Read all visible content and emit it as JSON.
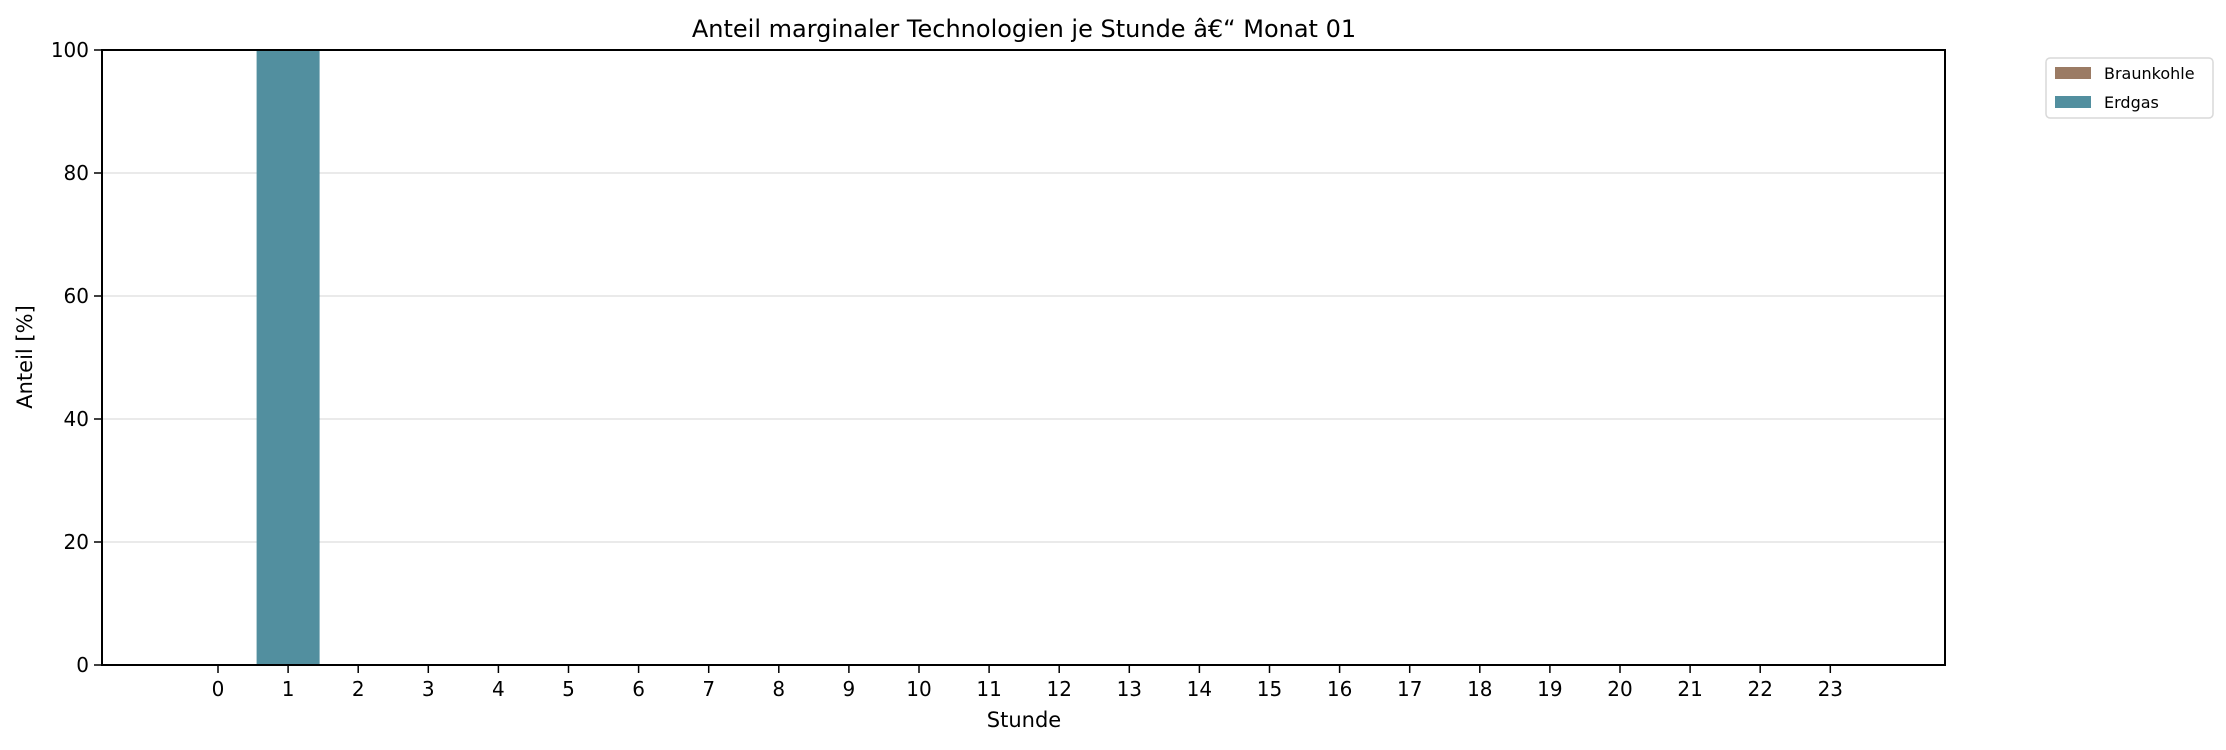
{
  "chart_data": {
    "type": "bar",
    "stacked": true,
    "title": "Anteil marginaler Technologien je Stunde â€“ Monat 01",
    "xlabel": "Stunde",
    "ylabel": "Anteil [%]",
    "categories": [
      "0",
      "1",
      "2",
      "3",
      "4",
      "5",
      "6",
      "7",
      "8",
      "9",
      "10",
      "11",
      "12",
      "13",
      "14",
      "15",
      "16",
      "17",
      "18",
      "19",
      "20",
      "21",
      "22",
      "23"
    ],
    "series": [
      {
        "name": "Braunkohle",
        "color": "#9b7b64",
        "values": [
          0,
          0,
          0,
          0,
          0,
          0,
          0,
          0,
          0,
          0,
          0,
          0,
          0,
          0,
          0,
          0,
          0,
          0,
          0,
          0,
          0,
          0,
          0,
          0
        ]
      },
      {
        "name": "Erdgas",
        "color": "#528f9f",
        "values": [
          0,
          100,
          0,
          0,
          0,
          0,
          0,
          0,
          0,
          0,
          0,
          0,
          0,
          0,
          0,
          0,
          0,
          0,
          0,
          0,
          0,
          0,
          0,
          0
        ]
      }
    ],
    "ylim": [
      0,
      100
    ],
    "yticks": [
      0,
      20,
      40,
      60,
      80,
      100
    ],
    "grid": "y",
    "legend": {
      "position": "outside-right",
      "entries": [
        "Braunkohle",
        "Erdgas"
      ]
    }
  }
}
